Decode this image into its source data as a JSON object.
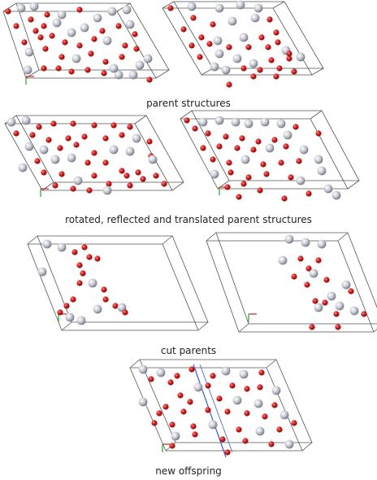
{
  "captions": {
    "parents": "parent structures",
    "transformed": "rotated, reflected and translated parent structures",
    "cut": "cut parents",
    "offspring": "new offspring"
  },
  "colors": {
    "oxygen": "#d42020",
    "metal": "#c9ccd4",
    "box_edge": "#555555",
    "cut_plane": "#3a5bd0",
    "axis_x": "#cc2222",
    "axis_y": "#22aa22"
  }
}
